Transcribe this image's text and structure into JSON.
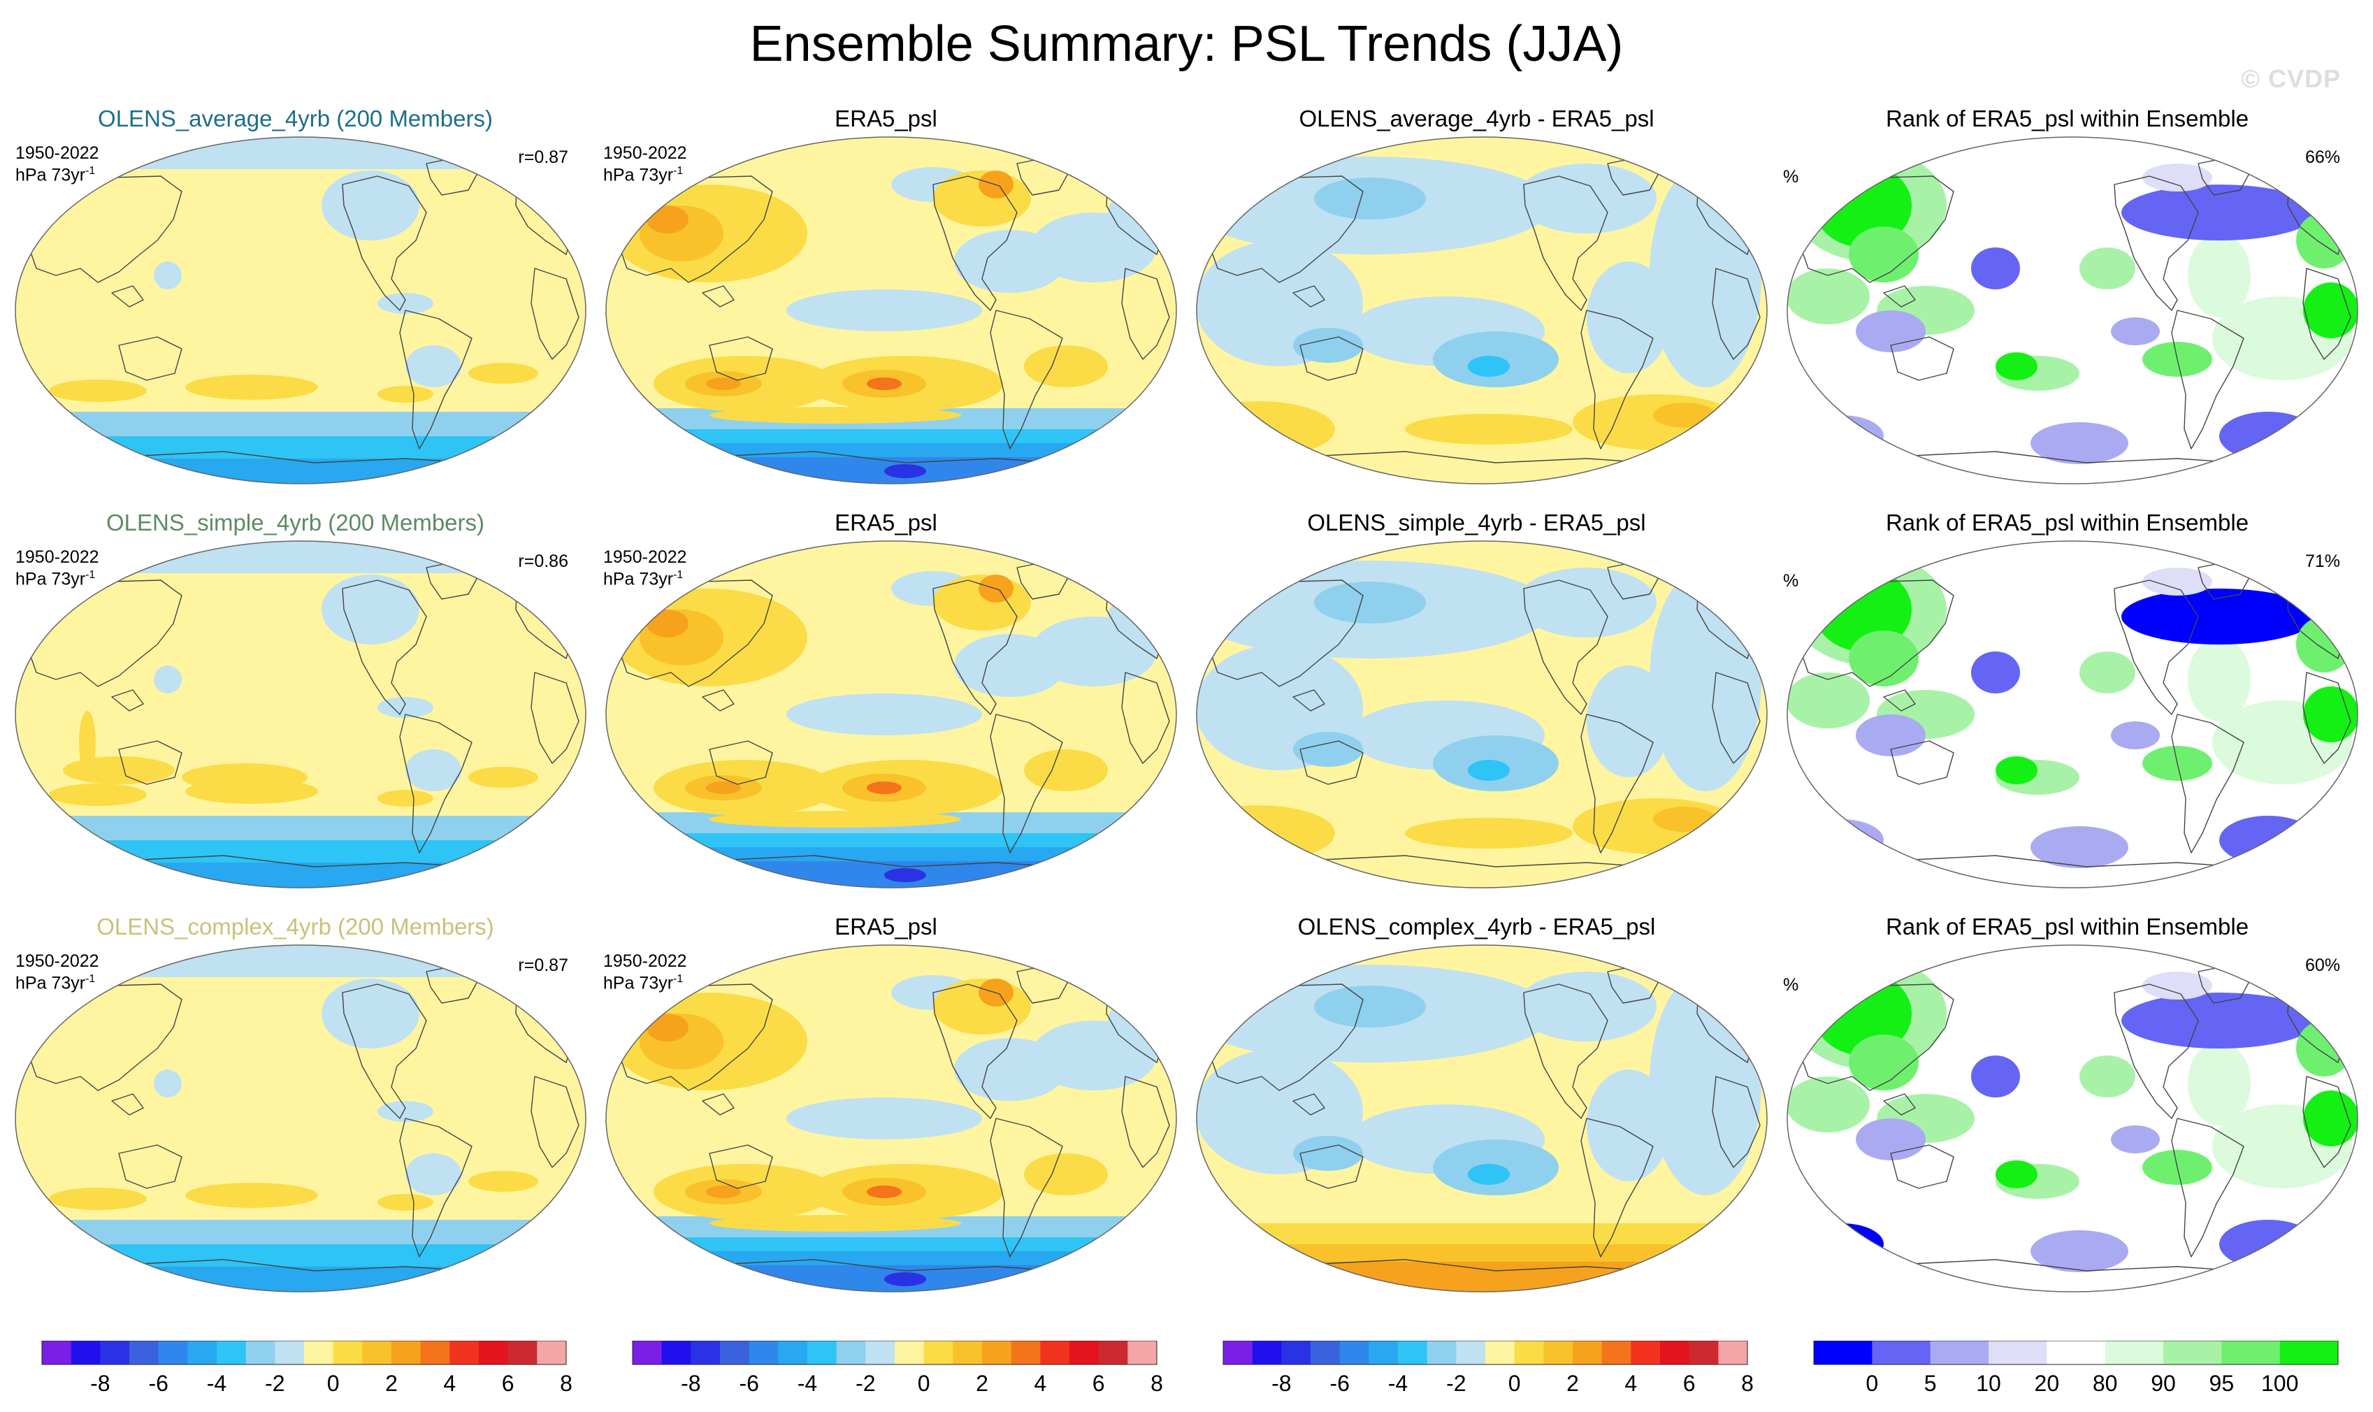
{
  "title": "Ensemble Summary: PSL Trends (JJA)",
  "copyright": "© CVDP",
  "chart_data": {
    "type": "map-panel-grid",
    "projection": "Robinson (global, Pacific-centered)",
    "rows": [
      {
        "model_title": "OLENS_average_4yrb (200 Members)",
        "model_color": "#1c6f8c",
        "period": "1950-2022",
        "units": "hPa 73yr",
        "units_exp": "-1",
        "pattern_corr": "r=0.87",
        "obs_title": "ERA5_psl",
        "diff_title": "OLENS_average_4yrb - ERA5_psl",
        "rank_title": "Rank of ERA5_psl within Ensemble",
        "rank_units": "%",
        "rank_pct": "66%"
      },
      {
        "model_title": "OLENS_simple_4yrb (200 Members)",
        "model_color": "#5d8a65",
        "period": "1950-2022",
        "units": "hPa 73yr",
        "units_exp": "-1",
        "pattern_corr": "r=0.86",
        "obs_title": "ERA5_psl",
        "diff_title": "OLENS_simple_4yrb - ERA5_psl",
        "rank_title": "Rank of ERA5_psl within Ensemble",
        "rank_units": "%",
        "rank_pct": "71%"
      },
      {
        "model_title": "OLENS_complex_4yrb (200 Members)",
        "model_color": "#c9c27a",
        "period": "1950-2022",
        "units": "hPa 73yr",
        "units_exp": "-1",
        "pattern_corr": "r=0.87",
        "obs_title": "ERA5_psl",
        "diff_title": "OLENS_complex_4yrb - ERA5_psl",
        "rank_title": "Rank of ERA5_psl within Ensemble",
        "rank_units": "%",
        "rank_pct": "60%"
      }
    ],
    "trend_colorbar": {
      "levels": [
        -9,
        -8,
        -7,
        -6,
        -5,
        -4,
        -3,
        -2,
        -1,
        0,
        1,
        2,
        3,
        4,
        5,
        6,
        7,
        8
      ],
      "tick_labels": [
        "-8",
        "-6",
        "-4",
        "-2",
        "0",
        "2",
        "4",
        "6",
        "8"
      ],
      "tick_values": [
        -8,
        -6,
        -4,
        -2,
        0,
        2,
        4,
        6,
        8
      ],
      "colors": [
        "#7b1fe8",
        "#2010ee",
        "#2a32e6",
        "#3a62de",
        "#2f87ec",
        "#27a8f0",
        "#2ec4f5",
        "#8fd0ee",
        "#bfe1f2",
        "#fff5a0",
        "#fbdc46",
        "#f9c22a",
        "#f7a21c",
        "#f5731a",
        "#f2331d",
        "#e5131d",
        "#cc2a30",
        "#f5a6a6"
      ]
    },
    "rank_colorbar": {
      "levels": [
        0,
        5,
        10,
        20,
        80,
        90,
        95,
        100
      ],
      "tick_labels": [
        "0",
        "5",
        "10",
        "20",
        "80",
        "90",
        "95",
        "100"
      ],
      "colors": [
        "#0000ff",
        "#6464f5",
        "#aaaaf2",
        "#dedef8",
        "#ffffff",
        "#dcfadc",
        "#a8f2a8",
        "#6ef06e",
        "#14f014"
      ]
    }
  }
}
